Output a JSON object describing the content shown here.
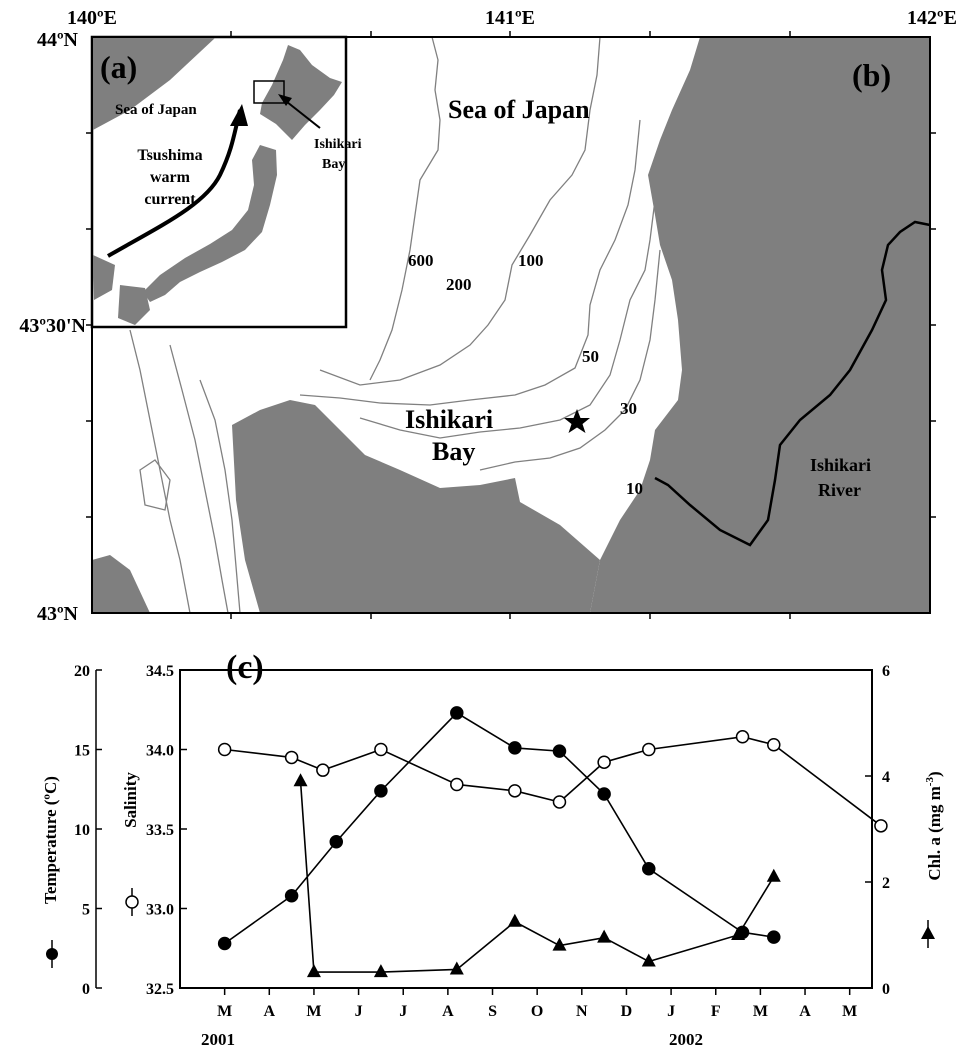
{
  "map": {
    "lon_labels": [
      "140ºE",
      "141ºE",
      "142ºE"
    ],
    "lat_labels": [
      "44ºN",
      "43º30'N",
      "43ºN"
    ],
    "panel_b": "(b)",
    "sea_label": "Sea of Japan",
    "bay_label_1": "Ishikari",
    "bay_label_2": "Bay",
    "river_label_1": "Ishikari",
    "river_label_2": "River",
    "depth_contours": [
      "600",
      "200",
      "100",
      "50",
      "30",
      "10"
    ],
    "station_marker": "star",
    "colors": {
      "land": "#7f7f7f",
      "contour": "#808080",
      "river": "#000000"
    }
  },
  "inset": {
    "panel_a": "(a)",
    "sea_label": "Sea of Japan",
    "current_1": "Tsushima",
    "current_2": "warm",
    "current_3": "current",
    "bay_1": "Ishikari",
    "bay_2": "Bay"
  },
  "chart": {
    "panel_c": "(c)",
    "temp_label": "Temperature (ºC)",
    "sal_label": "Salinity",
    "chl_label": "Chl. a (mg m",
    "chl_sup": "-3",
    "chl_close": ")",
    "year_2001": "2001",
    "year_2002": "2002"
  },
  "chart_data": {
    "type": "line",
    "months": [
      "M",
      "A",
      "M",
      "J",
      "J",
      "A",
      "S",
      "O",
      "N",
      "D",
      "J",
      "F",
      "M",
      "A",
      "M"
    ],
    "x_label_years": [
      "2001",
      "2002"
    ],
    "axes": {
      "temperature": {
        "label": "Temperature (ºC)",
        "ylim": [
          0,
          20
        ],
        "ticks": [
          0,
          5,
          10,
          15,
          20
        ]
      },
      "salinity": {
        "label": "Salinity",
        "ylim": [
          32.5,
          34.5
        ],
        "ticks": [
          "32.5",
          "33.0",
          "33.5",
          "34.0",
          "34.5"
        ]
      },
      "chl": {
        "label": "Chl. a (mg m-3)",
        "ylim": [
          0,
          6
        ],
        "ticks": [
          0,
          2,
          4,
          6
        ]
      }
    },
    "series": [
      {
        "marker": "filled-circle",
        "axis": "temperature",
        "x": [
          1.0,
          2.5,
          3.5,
          4.5,
          6.2,
          7.5,
          8.5,
          9.5,
          10.5,
          12.6,
          13.3
        ],
        "y": [
          2.8,
          5.8,
          9.2,
          12.4,
          17.3,
          15.1,
          14.9,
          12.2,
          7.5,
          3.5,
          3.2
        ]
      },
      {
        "marker": "open-circle",
        "axis": "salinity",
        "x": [
          1.0,
          2.5,
          3.2,
          4.5,
          6.2,
          7.5,
          8.5,
          9.5,
          10.5,
          12.6,
          13.3,
          15.7
        ],
        "y": [
          34.0,
          33.95,
          33.87,
          34.0,
          33.78,
          33.74,
          33.67,
          33.92,
          34.0,
          34.08,
          34.03,
          33.52
        ]
      },
      {
        "marker": "filled-triangle",
        "axis": "chl",
        "x": [
          2.7,
          3.0,
          4.5,
          6.2,
          7.5,
          8.5,
          9.5,
          10.5,
          12.5,
          13.3
        ],
        "y": [
          3.9,
          0.3,
          0.3,
          0.35,
          1.25,
          0.8,
          0.95,
          0.5,
          1.0,
          2.1
        ]
      }
    ]
  }
}
